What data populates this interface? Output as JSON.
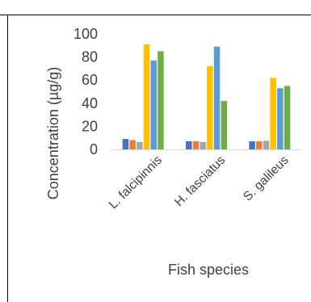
{
  "chart_data": {
    "type": "bar",
    "title": "",
    "xlabel": "Fish species",
    "ylabel": "Concentration (µg/g)",
    "ylim": [
      0,
      100
    ],
    "yticks": [
      0,
      20,
      40,
      60,
      80,
      100
    ],
    "categories": [
      "L. falcipinnis",
      "H. fasciatus",
      "S. galileus"
    ],
    "series": [
      {
        "color": "#4472C4",
        "values": [
          9,
          7,
          7
        ]
      },
      {
        "color": "#ED7D31",
        "values": [
          8,
          7,
          7
        ]
      },
      {
        "color": "#A5A5A5",
        "values": [
          6.5,
          6.5,
          7.5
        ]
      },
      {
        "color": "#FFC000",
        "values": [
          91,
          72,
          62
        ]
      },
      {
        "color": "#5B9BD5",
        "values": [
          77,
          89,
          53
        ]
      },
      {
        "color": "#70AD47",
        "values": [
          85,
          42,
          55
        ]
      }
    ],
    "legend": "none",
    "grid": false
  }
}
